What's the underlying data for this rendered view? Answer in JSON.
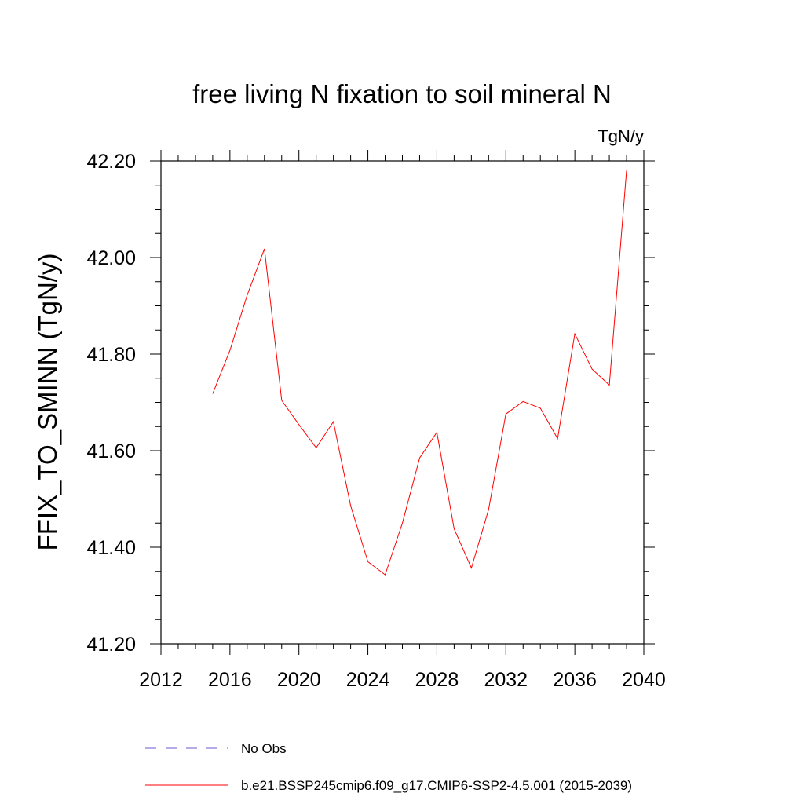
{
  "chart_data": {
    "type": "line",
    "title": "free living N fixation to soil mineral N",
    "units_label": "TgN/y",
    "xlabel": "",
    "ylabel": "FFIX_TO_SMINN  (TgN/y)",
    "xlim": [
      2012,
      2040
    ],
    "ylim": [
      41.2,
      42.2
    ],
    "x_ticks": [
      2012,
      2016,
      2020,
      2024,
      2028,
      2032,
      2036,
      2040
    ],
    "y_ticks": [
      "41.20",
      "41.40",
      "41.60",
      "41.80",
      "42.00",
      "42.20"
    ],
    "grid": false,
    "series": [
      {
        "name": "b.e21.BSSP245cmip6.f09_g17.CMIP6-SSP2-4.5.001 (2015-2039)",
        "color": "#ff0000",
        "x": [
          2015,
          2016,
          2017,
          2018,
          2019,
          2020,
          2021,
          2022,
          2023,
          2024,
          2025,
          2026,
          2027,
          2028,
          2029,
          2030,
          2031,
          2032,
          2033,
          2034,
          2035,
          2036,
          2037,
          2038,
          2039
        ],
        "values": [
          41.718,
          41.808,
          41.922,
          42.018,
          41.704,
          41.654,
          41.606,
          41.66,
          41.486,
          41.37,
          41.343,
          41.45,
          41.585,
          41.638,
          41.438,
          41.357,
          41.478,
          41.676,
          41.702,
          41.688,
          41.625,
          41.842,
          41.769,
          41.736,
          42.18
        ]
      }
    ],
    "legend": [
      {
        "label": "No Obs",
        "color": "#6a5acd",
        "style": "dashed"
      },
      {
        "label": "b.e21.BSSP245cmip6.f09_g17.CMIP6-SSP2-4.5.001 (2015-2039)",
        "color": "#ff0000",
        "style": "solid"
      }
    ],
    "legend_position": "bottom"
  }
}
